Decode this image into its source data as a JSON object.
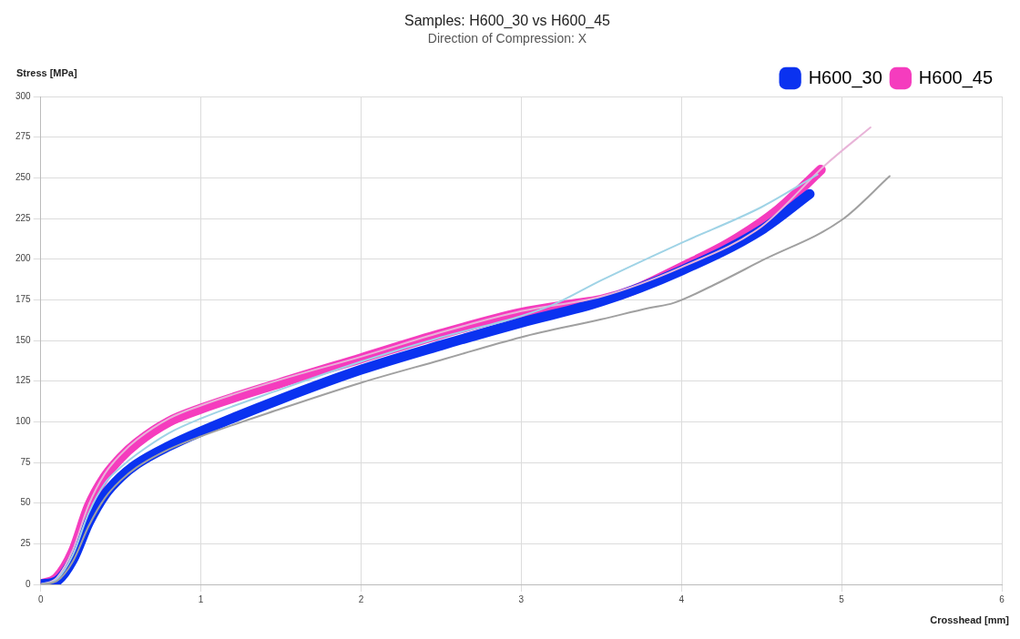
{
  "chart_data": {
    "type": "line",
    "title": "Samples: H600_30 vs H600_45",
    "subtitle": "Direction of Compression: X",
    "xlabel": "Crosshead [mm]",
    "ylabel": "Stress [MPa]",
    "xlim": [
      0,
      6
    ],
    "xticks": [
      0,
      1,
      2,
      3,
      4,
      5,
      6
    ],
    "ylim": [
      0,
      300
    ],
    "yticks": [
      0,
      25,
      50,
      75,
      100,
      125,
      150,
      175,
      200,
      225,
      250,
      275,
      300
    ],
    "grid": true,
    "legend": "top right",
    "marker": "none",
    "line_style": "solid",
    "series": [
      {
        "color": "#a0a0a0",
        "x": [
          0,
          0.1,
          0.2,
          0.3,
          0.4,
          0.5,
          0.6,
          0.8,
          1.0,
          1.5,
          2.0,
          2.5,
          3.0,
          3.5,
          3.8,
          3.95,
          4.2,
          4.5,
          5.0,
          5.3
        ],
        "values": [
          0,
          2,
          14,
          36,
          53,
          64,
          72,
          83,
          91,
          108,
          124,
          138,
          152,
          163,
          170,
          173,
          184,
          199,
          224,
          251
        ]
      },
      {
        "color": "#9fd3e6",
        "x": [
          0,
          0.1,
          0.2,
          0.3,
          0.4,
          0.5,
          0.6,
          0.8,
          1.0,
          1.5,
          2.0,
          2.5,
          3.0,
          3.2,
          3.5,
          4.0,
          4.5,
          4.85
        ],
        "values": [
          0,
          3,
          18,
          44,
          62,
          72,
          80,
          93,
          102,
          120,
          137,
          152,
          165,
          172,
          187,
          210,
          232,
          252
        ]
      },
      {
        "color": "#e8b4d8",
        "x": [
          0,
          0.1,
          0.2,
          0.3,
          0.4,
          0.5,
          0.6,
          0.8,
          1.0,
          1.5,
          2.0,
          2.5,
          3.0,
          3.5,
          4.0,
          4.5,
          4.9,
          5.18
        ],
        "values": [
          0,
          4,
          21,
          49,
          68,
          80,
          89,
          102,
          110,
          126,
          140,
          155,
          168,
          177,
          195,
          220,
          258,
          281
        ]
      },
      {
        "name": "H600_30",
        "color": "#0a32f0",
        "x": [
          0,
          0.1,
          0.2,
          0.3,
          0.4,
          0.5,
          0.6,
          0.8,
          1.0,
          1.5,
          2.0,
          2.5,
          3.0,
          3.5,
          4.0,
          4.5,
          4.8
        ],
        "values": [
          0,
          2,
          15,
          38,
          55,
          66,
          74,
          85,
          94,
          114,
          132,
          147,
          161,
          174,
          193,
          218,
          240
        ]
      },
      {
        "name": "H600_45",
        "color": "#f53cbe",
        "x": [
          0,
          0.1,
          0.2,
          0.3,
          0.4,
          0.5,
          0.6,
          0.8,
          1.0,
          1.5,
          2.0,
          2.5,
          3.0,
          3.3,
          3.5,
          3.7,
          4.0,
          4.3,
          4.6,
          4.87
        ],
        "values": [
          0,
          4,
          20,
          48,
          66,
          78,
          87,
          100,
          108,
          124,
          139,
          154,
          167,
          172,
          175,
          181,
          195,
          210,
          230,
          255
        ]
      }
    ]
  }
}
